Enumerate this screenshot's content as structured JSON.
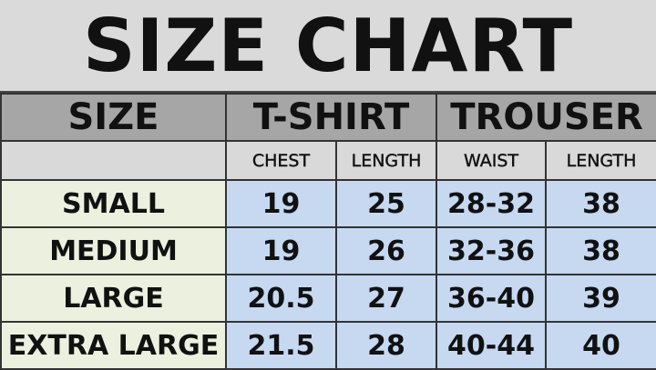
{
  "title": "SIZE CHART",
  "header": {
    "size": "SIZE",
    "tshirt": "T-SHIRT",
    "trouser": "TROUSER"
  },
  "subheader": [
    "CHEST",
    "LENGTH",
    "WAIST",
    "LENGTH"
  ],
  "rows": [
    {
      "size": "SMALL",
      "values": [
        "19",
        "25",
        "28-32",
        "38"
      ]
    },
    {
      "size": "MEDIUM",
      "values": [
        "19",
        "26",
        "32-36",
        "38"
      ]
    },
    {
      "size": "LARGE",
      "values": [
        "20.5",
        "27",
        "36-40",
        "39"
      ]
    },
    {
      "size": "EXTRA LARGE",
      "values": [
        "21.5",
        "28",
        "40-44",
        "40"
      ]
    }
  ],
  "colors": {
    "header": "#a6a6a6",
    "subheader": "#d9d9d9",
    "size_cell": "#ebf1de",
    "value_cell": "#c6d9f1"
  }
}
